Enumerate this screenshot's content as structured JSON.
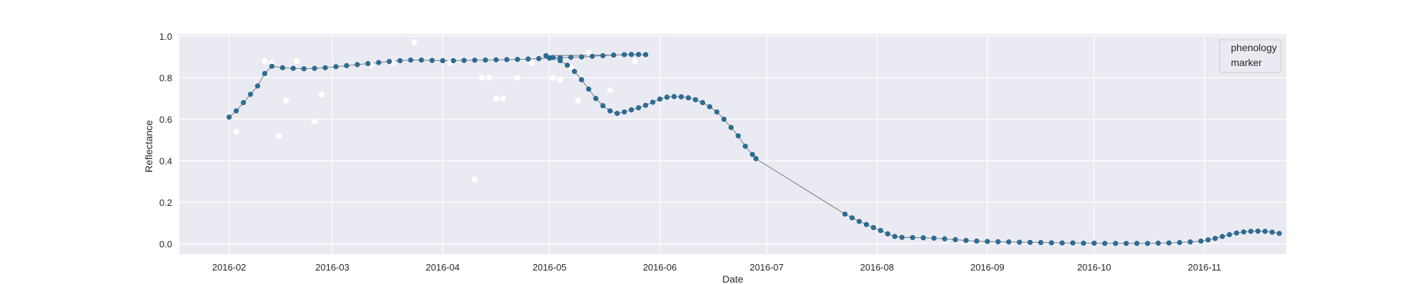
{
  "chart_data": {
    "type": "scatter",
    "xlabel": "Date",
    "ylabel": "Reflectance",
    "xlim": [
      "2016-01-18",
      "2016-11-24"
    ],
    "ylim": [
      -0.05,
      1.01
    ],
    "x_ticks": [
      "2016-02",
      "2016-03",
      "2016-04",
      "2016-05",
      "2016-06",
      "2016-07",
      "2016-08",
      "2016-09",
      "2016-10",
      "2016-11"
    ],
    "y_ticks": [
      "0.0",
      "0.2",
      "0.4",
      "0.6",
      "0.8",
      "1.0"
    ],
    "y_tick_values": [
      0.0,
      0.2,
      0.4,
      0.6,
      0.8,
      1.0
    ],
    "grid": true,
    "legend": {
      "placement": "top-right",
      "entries": [
        "phenology",
        "marker"
      ]
    },
    "colors": {
      "background": "#eaeaf2",
      "grid": "#ffffff",
      "phenology": "#2a6f97",
      "phenology_edge": "#1f5a7e",
      "line": "#7a7a7a",
      "observations": "#ffffff"
    },
    "series": [
      {
        "name": "phenology",
        "style": "line-with-markers",
        "points": [
          [
            "2016-02-01",
            0.61
          ],
          [
            "2016-02-03",
            0.64
          ],
          [
            "2016-02-05",
            0.68
          ],
          [
            "2016-02-07",
            0.72
          ],
          [
            "2016-02-09",
            0.76
          ],
          [
            "2016-02-11",
            0.82
          ],
          [
            "2016-02-13",
            0.855
          ],
          [
            "2016-02-16",
            0.848
          ],
          [
            "2016-02-19",
            0.845
          ],
          [
            "2016-02-22",
            0.843
          ],
          [
            "2016-02-25",
            0.845
          ],
          [
            "2016-02-28",
            0.848
          ],
          [
            "2016-03-02",
            0.853
          ],
          [
            "2016-03-05",
            0.858
          ],
          [
            "2016-03-08",
            0.863
          ],
          [
            "2016-03-11",
            0.868
          ],
          [
            "2016-03-14",
            0.873
          ],
          [
            "2016-03-17",
            0.878
          ],
          [
            "2016-03-20",
            0.882
          ],
          [
            "2016-03-23",
            0.885
          ],
          [
            "2016-03-26",
            0.885
          ],
          [
            "2016-03-29",
            0.883
          ],
          [
            "2016-04-01",
            0.882
          ],
          [
            "2016-04-04",
            0.882
          ],
          [
            "2016-04-07",
            0.883
          ],
          [
            "2016-04-10",
            0.884
          ],
          [
            "2016-04-13",
            0.885
          ],
          [
            "2016-04-16",
            0.886
          ],
          [
            "2016-04-19",
            0.887
          ],
          [
            "2016-04-22",
            0.888
          ],
          [
            "2016-04-25",
            0.89
          ],
          [
            "2016-04-28",
            0.892
          ],
          [
            "2016-05-01",
            0.894
          ],
          [
            "2016-05-04",
            0.896
          ],
          [
            "2016-05-07",
            0.898
          ],
          [
            "2016-05-10",
            0.9
          ],
          [
            "2016-05-13",
            0.903
          ],
          [
            "2016-05-16",
            0.906
          ],
          [
            "2016-05-19",
            0.909
          ],
          [
            "2016-05-22",
            0.911
          ],
          [
            "2016-05-24",
            0.912
          ],
          [
            "2016-05-26",
            0.912
          ],
          [
            "2016-05-28",
            0.911
          ],
          [
            "2016-04-30",
            0.906
          ],
          [
            "2016-05-02",
            0.897
          ],
          [
            "2016-05-04",
            0.882
          ],
          [
            "2016-05-06",
            0.86
          ],
          [
            "2016-05-08",
            0.83
          ],
          [
            "2016-05-10",
            0.79
          ],
          [
            "2016-05-12",
            0.745
          ],
          [
            "2016-05-14",
            0.7
          ],
          [
            "2016-05-16",
            0.665
          ],
          [
            "2016-05-18",
            0.64
          ],
          [
            "2016-05-20",
            0.628
          ],
          [
            "2016-05-22",
            0.635
          ],
          [
            "2016-05-24",
            0.645
          ],
          [
            "2016-05-26",
            0.655
          ],
          [
            "2016-05-28",
            0.667
          ],
          [
            "2016-05-30",
            0.682
          ],
          [
            "2016-06-01",
            0.697
          ],
          [
            "2016-06-03",
            0.706
          ],
          [
            "2016-06-05",
            0.709
          ],
          [
            "2016-06-07",
            0.708
          ],
          [
            "2016-06-09",
            0.703
          ],
          [
            "2016-06-11",
            0.694
          ],
          [
            "2016-06-13",
            0.68
          ],
          [
            "2016-06-15",
            0.66
          ],
          [
            "2016-06-17",
            0.635
          ],
          [
            "2016-06-19",
            0.6
          ],
          [
            "2016-06-21",
            0.56
          ],
          [
            "2016-06-23",
            0.52
          ],
          [
            "2016-06-25",
            0.47
          ],
          [
            "2016-06-27",
            0.43
          ],
          [
            "2016-06-28",
            0.41
          ],
          [
            "2016-07-23",
            0.143
          ],
          [
            "2016-07-25",
            0.125
          ],
          [
            "2016-07-27",
            0.108
          ],
          [
            "2016-07-29",
            0.093
          ],
          [
            "2016-07-31",
            0.078
          ],
          [
            "2016-08-02",
            0.064
          ],
          [
            "2016-08-04",
            0.048
          ],
          [
            "2016-08-06",
            0.035
          ],
          [
            "2016-08-08",
            0.031
          ],
          [
            "2016-08-11",
            0.03
          ],
          [
            "2016-08-14",
            0.029
          ],
          [
            "2016-08-17",
            0.027
          ],
          [
            "2016-08-20",
            0.024
          ],
          [
            "2016-08-23",
            0.02
          ],
          [
            "2016-08-26",
            0.016
          ],
          [
            "2016-08-29",
            0.013
          ],
          [
            "2016-09-01",
            0.011
          ],
          [
            "2016-09-04",
            0.01
          ],
          [
            "2016-09-07",
            0.009
          ],
          [
            "2016-09-10",
            0.008
          ],
          [
            "2016-09-13",
            0.007
          ],
          [
            "2016-09-16",
            0.006
          ],
          [
            "2016-09-19",
            0.005
          ],
          [
            "2016-09-22",
            0.004
          ],
          [
            "2016-09-25",
            0.004
          ],
          [
            "2016-09-28",
            0.003
          ],
          [
            "2016-10-01",
            0.003
          ],
          [
            "2016-10-04",
            0.002
          ],
          [
            "2016-10-07",
            0.002
          ],
          [
            "2016-10-10",
            0.002
          ],
          [
            "2016-10-13",
            0.002
          ],
          [
            "2016-10-16",
            0.002
          ],
          [
            "2016-10-19",
            0.003
          ],
          [
            "2016-10-22",
            0.004
          ],
          [
            "2016-10-25",
            0.006
          ],
          [
            "2016-10-28",
            0.009
          ],
          [
            "2016-10-31",
            0.013
          ],
          [
            "2016-11-02",
            0.019
          ],
          [
            "2016-11-04",
            0.026
          ],
          [
            "2016-11-06",
            0.035
          ],
          [
            "2016-11-08",
            0.044
          ],
          [
            "2016-11-10",
            0.052
          ],
          [
            "2016-11-12",
            0.057
          ],
          [
            "2016-11-14",
            0.06
          ],
          [
            "2016-11-16",
            0.061
          ],
          [
            "2016-11-18",
            0.06
          ],
          [
            "2016-11-20",
            0.056
          ],
          [
            "2016-11-22",
            0.05
          ]
        ]
      },
      {
        "name": "marker",
        "style": "points",
        "points": [
          [
            "2016-02-03",
            0.54
          ],
          [
            "2016-02-11",
            0.88
          ],
          [
            "2016-02-13",
            0.87
          ],
          [
            "2016-02-15",
            0.52
          ],
          [
            "2016-02-17",
            0.69
          ],
          [
            "2016-02-20",
            0.88
          ],
          [
            "2016-02-25",
            0.59
          ],
          [
            "2016-02-27",
            0.72
          ],
          [
            "2016-03-12",
            0.86
          ],
          [
            "2016-03-18",
            0.87
          ],
          [
            "2016-03-24",
            0.97
          ],
          [
            "2016-04-03",
            0.87
          ],
          [
            "2016-04-10",
            0.31
          ],
          [
            "2016-04-12",
            0.8
          ],
          [
            "2016-04-14",
            0.8
          ],
          [
            "2016-04-16",
            0.7
          ],
          [
            "2016-04-18",
            0.7
          ],
          [
            "2016-04-22",
            0.8
          ],
          [
            "2016-04-26",
            0.87
          ],
          [
            "2016-05-02",
            0.8
          ],
          [
            "2016-05-04",
            0.79
          ],
          [
            "2016-05-07",
            0.85
          ],
          [
            "2016-05-09",
            0.69
          ],
          [
            "2016-05-12",
            0.92
          ],
          [
            "2016-05-18",
            0.74
          ],
          [
            "2016-05-25",
            0.88
          ]
        ]
      }
    ]
  }
}
